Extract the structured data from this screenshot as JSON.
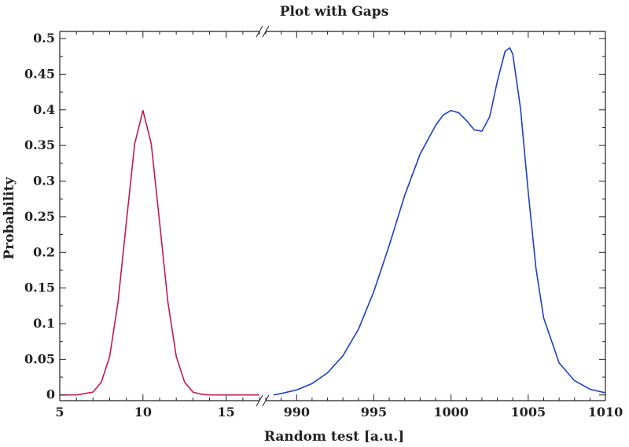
{
  "chart_data": {
    "type": "line",
    "title": "Plot with Gaps",
    "xlabel": "Random test [a.u.]",
    "ylabel": "Probability",
    "ylim": [
      -0.008,
      0.51
    ],
    "y_ticks": [
      "0",
      "0.05",
      "0.1",
      "0.15",
      "0.2",
      "0.25",
      "0.3",
      "0.35",
      "0.4",
      "0.45",
      "0.5"
    ],
    "x_axis": "broken",
    "panels": [
      {
        "xlim": [
          5,
          17
        ],
        "x_ticks": [
          "5",
          "10",
          "15"
        ],
        "series": [
          {
            "color": "#c8174a",
            "x": [
              5,
              6,
              6.5,
              7,
              7.5,
              8,
              8.5,
              9,
              9.5,
              10,
              10.5,
              11,
              11.5,
              12,
              12.5,
              13,
              13.5,
              14,
              15,
              16,
              17
            ],
            "y": [
              0.0,
              0.0,
              0.002,
              0.004,
              0.018,
              0.054,
              0.13,
              0.242,
              0.352,
              0.399,
              0.352,
              0.242,
              0.13,
              0.054,
              0.018,
              0.004,
              0.001,
              0.0,
              0.0,
              0.0,
              0.0
            ]
          }
        ]
      },
      {
        "xlim": [
          988,
          1010
        ],
        "x_ticks": [
          "990",
          "995",
          "1000",
          "1005",
          "1010"
        ],
        "series": [
          {
            "color": "#1a3fd0",
            "x": [
              988.5,
              989,
              990,
              991,
              992,
              993,
              994,
              995,
              996,
              997,
              998,
              999,
              999.5,
              1000,
              1000.5,
              1001,
              1001.5,
              1002,
              1002.5,
              1003,
              1003.5,
              1003.8,
              1004,
              1004.5,
              1005,
              1005.5,
              1006,
              1007,
              1008,
              1009,
              1010
            ],
            "y": [
              0.0,
              0.002,
              0.007,
              0.016,
              0.031,
              0.055,
              0.092,
              0.145,
              0.21,
              0.28,
              0.338,
              0.378,
              0.393,
              0.399,
              0.396,
              0.385,
              0.372,
              0.37,
              0.39,
              0.44,
              0.482,
              0.487,
              0.478,
              0.402,
              0.285,
              0.178,
              0.108,
              0.045,
              0.02,
              0.008,
              0.003
            ]
          }
        ]
      }
    ]
  }
}
